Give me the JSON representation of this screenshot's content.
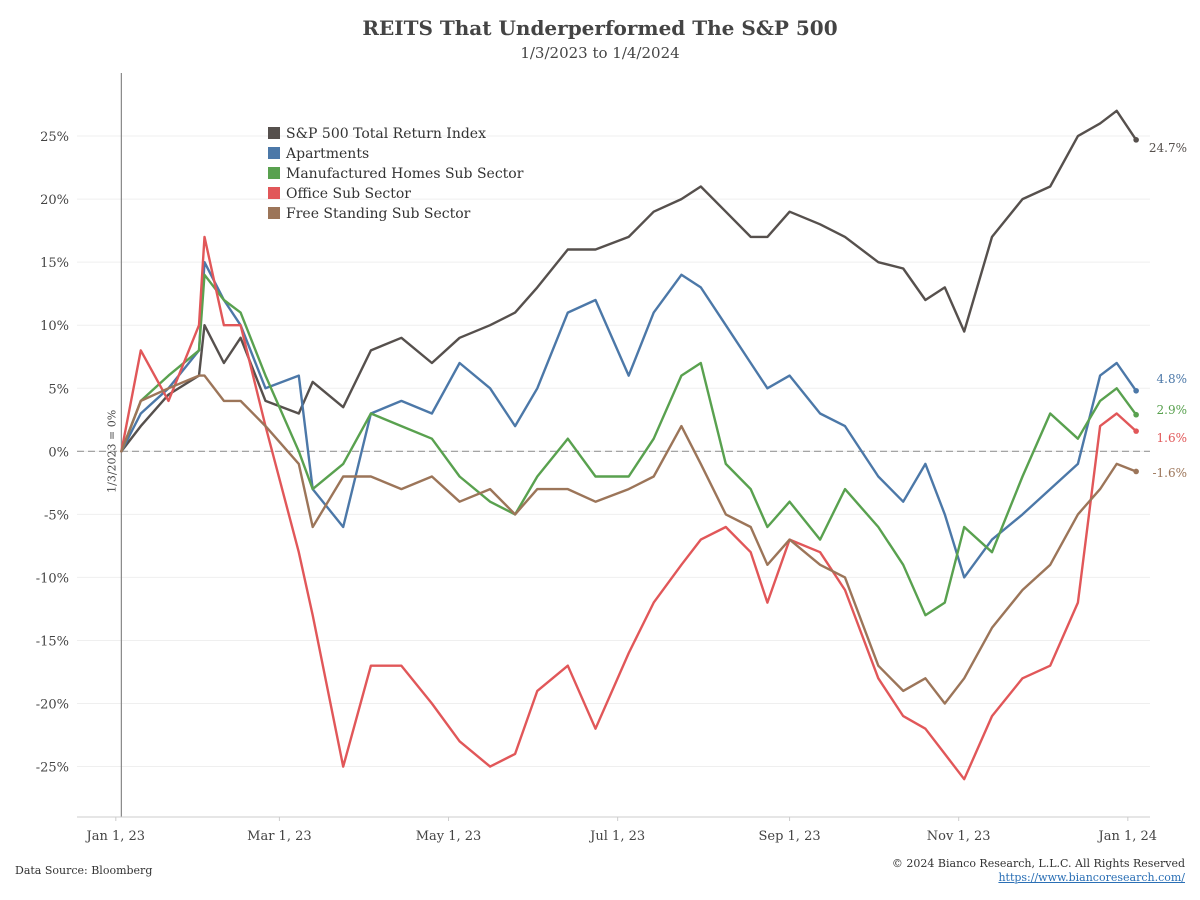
{
  "chart_data": {
    "type": "line",
    "title": "REITS That Underperformed The S&P 500",
    "subtitle": "1/3/2023 to 1/4/2024",
    "ylim": [
      -29,
      30
    ],
    "y_ticks": [
      -25,
      -20,
      -15,
      -10,
      -5,
      0,
      5,
      10,
      15,
      20,
      25
    ],
    "y_tick_labels": [
      "-25%",
      "-20%",
      "-15%",
      "-10%",
      "-5%",
      "0%",
      "5%",
      "10%",
      "15%",
      "20%",
      "25%"
    ],
    "x_ticks": [
      "2023-01-01",
      "2023-03-01",
      "2023-05-01",
      "2023-07-01",
      "2023-09-01",
      "2023-11-01",
      "2024-01-01"
    ],
    "x_tick_labels": [
      "Jan 1, 23",
      "Mar 1, 23",
      "May 1, 23",
      "Jul 1, 23",
      "Sep 1, 23",
      "Nov 1, 23",
      "Jan 1, 24"
    ],
    "xlim": [
      "2022-12-18",
      "2024-01-09"
    ],
    "zero_line": true,
    "vertical_ref": {
      "date": "2023-01-03",
      "label": "1/3/2023 = 0%"
    },
    "legend_position": "upper-left",
    "series": [
      {
        "name": "S&P 500 Total Return Index",
        "color": "#56504d",
        "end_label": "24.7%",
        "x": [
          "2023-01-03",
          "2023-01-10",
          "2023-01-20",
          "2023-01-31",
          "2023-02-02",
          "2023-02-09",
          "2023-02-15",
          "2023-02-24",
          "2023-03-08",
          "2023-03-13",
          "2023-03-24",
          "2023-04-03",
          "2023-04-14",
          "2023-04-25",
          "2023-05-05",
          "2023-05-16",
          "2023-05-25",
          "2023-06-02",
          "2023-06-13",
          "2023-06-23",
          "2023-07-05",
          "2023-07-14",
          "2023-07-24",
          "2023-07-31",
          "2023-08-09",
          "2023-08-18",
          "2023-08-24",
          "2023-09-01",
          "2023-09-12",
          "2023-09-21",
          "2023-10-03",
          "2023-10-12",
          "2023-10-20",
          "2023-10-27",
          "2023-11-03",
          "2023-11-13",
          "2023-11-24",
          "2023-12-04",
          "2023-12-14",
          "2023-12-22",
          "2023-12-28",
          "2024-01-04"
        ],
        "values": [
          0,
          2,
          4.5,
          6,
          10,
          7,
          9,
          4,
          3,
          5.5,
          3.5,
          8,
          9,
          7,
          9,
          10,
          11,
          13,
          16,
          16,
          17,
          19,
          20,
          21,
          19,
          17,
          17,
          19,
          18,
          17,
          15,
          14.5,
          12,
          13,
          9.5,
          17,
          20,
          21,
          25,
          26,
          27,
          24.7
        ]
      },
      {
        "name": "Apartments",
        "color": "#4c78a8",
        "end_label": "4.8%",
        "x": [
          "2023-01-03",
          "2023-01-10",
          "2023-01-20",
          "2023-01-31",
          "2023-02-02",
          "2023-02-09",
          "2023-02-15",
          "2023-02-24",
          "2023-03-08",
          "2023-03-13",
          "2023-03-24",
          "2023-04-03",
          "2023-04-14",
          "2023-04-25",
          "2023-05-05",
          "2023-05-16",
          "2023-05-25",
          "2023-06-02",
          "2023-06-13",
          "2023-06-23",
          "2023-07-05",
          "2023-07-14",
          "2023-07-24",
          "2023-07-31",
          "2023-08-09",
          "2023-08-18",
          "2023-08-24",
          "2023-09-01",
          "2023-09-12",
          "2023-09-21",
          "2023-10-03",
          "2023-10-12",
          "2023-10-20",
          "2023-10-27",
          "2023-11-03",
          "2023-11-13",
          "2023-11-24",
          "2023-12-04",
          "2023-12-14",
          "2023-12-22",
          "2023-12-28",
          "2024-01-04"
        ],
        "values": [
          0,
          3,
          5,
          8,
          15,
          12,
          10,
          5,
          6,
          -3,
          -6,
          3,
          4,
          3,
          7,
          5,
          2,
          5,
          11,
          12,
          6,
          11,
          14,
          13,
          10,
          7,
          5,
          6,
          3,
          2,
          -2,
          -4,
          -1,
          -5,
          -10,
          -7,
          -5,
          -3,
          -1,
          6,
          7,
          4.8
        ]
      },
      {
        "name": "Manufactured Homes Sub Sector",
        "color": "#59a14f",
        "end_label": "2.9%",
        "x": [
          "2023-01-03",
          "2023-01-10",
          "2023-01-20",
          "2023-01-31",
          "2023-02-02",
          "2023-02-09",
          "2023-02-15",
          "2023-02-24",
          "2023-03-08",
          "2023-03-13",
          "2023-03-24",
          "2023-04-03",
          "2023-04-14",
          "2023-04-25",
          "2023-05-05",
          "2023-05-16",
          "2023-05-25",
          "2023-06-02",
          "2023-06-13",
          "2023-06-23",
          "2023-07-05",
          "2023-07-14",
          "2023-07-24",
          "2023-07-31",
          "2023-08-09",
          "2023-08-18",
          "2023-08-24",
          "2023-09-01",
          "2023-09-12",
          "2023-09-21",
          "2023-10-03",
          "2023-10-12",
          "2023-10-20",
          "2023-10-27",
          "2023-11-03",
          "2023-11-13",
          "2023-11-24",
          "2023-12-04",
          "2023-12-14",
          "2023-12-22",
          "2023-12-28",
          "2024-01-04"
        ],
        "values": [
          0,
          4,
          6,
          8,
          14,
          12,
          11,
          6,
          0,
          -3,
          -1,
          3,
          2,
          1,
          -2,
          -4,
          -5,
          -2,
          1,
          -2,
          -2,
          1,
          6,
          7,
          -1,
          -3,
          -6,
          -4,
          -7,
          -3,
          -6,
          -9,
          -13,
          -12,
          -6,
          -8,
          -2,
          3,
          1,
          4,
          5,
          2.9
        ]
      },
      {
        "name": "Office Sub Sector",
        "color": "#e15759",
        "end_label": "1.6%",
        "x": [
          "2023-01-03",
          "2023-01-10",
          "2023-01-20",
          "2023-01-31",
          "2023-02-02",
          "2023-02-09",
          "2023-02-15",
          "2023-02-24",
          "2023-03-08",
          "2023-03-13",
          "2023-03-24",
          "2023-04-03",
          "2023-04-14",
          "2023-04-25",
          "2023-05-05",
          "2023-05-16",
          "2023-05-25",
          "2023-06-02",
          "2023-06-13",
          "2023-06-23",
          "2023-07-05",
          "2023-07-14",
          "2023-07-24",
          "2023-07-31",
          "2023-08-09",
          "2023-08-18",
          "2023-08-24",
          "2023-09-01",
          "2023-09-12",
          "2023-09-21",
          "2023-10-03",
          "2023-10-12",
          "2023-10-20",
          "2023-10-27",
          "2023-11-03",
          "2023-11-13",
          "2023-11-24",
          "2023-12-04",
          "2023-12-14",
          "2023-12-22",
          "2023-12-28",
          "2024-01-04"
        ],
        "values": [
          0,
          8,
          4,
          10,
          17,
          10,
          10,
          2,
          -8,
          -13,
          -25,
          -17,
          -17,
          -20,
          -23,
          -25,
          -24,
          -19,
          -17,
          -22,
          -16,
          -12,
          -9,
          -7,
          -6,
          -8,
          -12,
          -7,
          -8,
          -11,
          -18,
          -21,
          -22,
          -24,
          -26,
          -21,
          -18,
          -17,
          -12,
          2,
          3,
          1.6
        ]
      },
      {
        "name": "Free Standing Sub Sector",
        "color": "#9c7559",
        "end_label": "-1.6%",
        "x": [
          "2023-01-03",
          "2023-01-10",
          "2023-01-20",
          "2023-01-31",
          "2023-02-02",
          "2023-02-09",
          "2023-02-15",
          "2023-02-24",
          "2023-03-08",
          "2023-03-13",
          "2023-03-24",
          "2023-04-03",
          "2023-04-14",
          "2023-04-25",
          "2023-05-05",
          "2023-05-16",
          "2023-05-25",
          "2023-06-02",
          "2023-06-13",
          "2023-06-23",
          "2023-07-05",
          "2023-07-14",
          "2023-07-24",
          "2023-07-31",
          "2023-08-09",
          "2023-08-18",
          "2023-08-24",
          "2023-09-01",
          "2023-09-12",
          "2023-09-21",
          "2023-10-03",
          "2023-10-12",
          "2023-10-20",
          "2023-10-27",
          "2023-11-03",
          "2023-11-13",
          "2023-11-24",
          "2023-12-04",
          "2023-12-14",
          "2023-12-22",
          "2023-12-28",
          "2024-01-04"
        ],
        "values": [
          0,
          4,
          5,
          6,
          6,
          4,
          4,
          2,
          -1,
          -6,
          -2,
          -2,
          -3,
          -2,
          -4,
          -3,
          -5,
          -3,
          -3,
          -4,
          -3,
          -2,
          2,
          -1,
          -5,
          -6,
          -9,
          -7,
          -9,
          -10,
          -17,
          -19,
          -18,
          -20,
          -18,
          -14,
          -11,
          -9,
          -5,
          -3,
          -1,
          -1.6
        ]
      }
    ]
  },
  "footer": {
    "source": "Data Source: Bloomberg",
    "copyright": "© 2024 Bianco Research, L.L.C. All Rights Reserved",
    "url": "https://www.biancoresearch.com/"
  }
}
